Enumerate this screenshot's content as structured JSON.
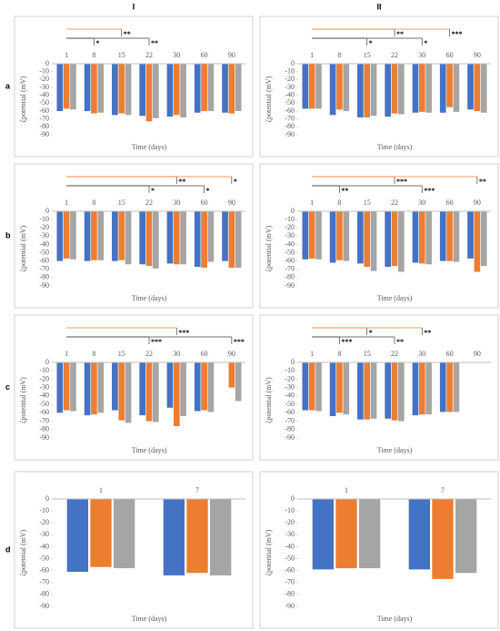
{
  "columns": [
    "I",
    "II"
  ],
  "rows": [
    "a",
    "b",
    "c",
    "d"
  ],
  "chart_data": [
    {
      "type": "bar",
      "categories": [
        "1",
        "8",
        "15",
        "22",
        "30",
        "60",
        "90"
      ],
      "ylim": [
        -90,
        0
      ],
      "yticks": [
        0,
        -10,
        -20,
        -30,
        -40,
        -50,
        -60,
        -70,
        -80,
        -90
      ],
      "y_label": "ζpotential (mV)",
      "x_label": "Time (days)",
      "series": [
        {
          "color": "#4472c4",
          "values": [
            -60,
            -60,
            -65,
            -66,
            -67,
            -62,
            -62
          ]
        },
        {
          "color": "#ed7d31",
          "values": [
            -57,
            -63,
            -63,
            -73,
            -65,
            -60,
            -63
          ]
        },
        {
          "color": "#a5a5a5",
          "values": [
            -58,
            -62,
            -65,
            -69,
            -68,
            -60,
            -60
          ]
        }
      ],
      "annotations": [
        {
          "text": "*",
          "category": "8"
        },
        {
          "text": "**",
          "category": "15"
        },
        {
          "text": "**",
          "category": "22"
        }
      ]
    },
    {
      "type": "bar",
      "categories": [
        "1",
        "8",
        "15",
        "22",
        "30",
        "60",
        "90"
      ],
      "ylim": [
        -90,
        0
      ],
      "yticks": [
        0,
        -10,
        -20,
        -30,
        -40,
        -50,
        -60,
        -70,
        -80,
        -90
      ],
      "y_label": "ζpotential (mV)",
      "x_label": "Time (days)",
      "series": [
        {
          "color": "#4472c4",
          "values": [
            -57,
            -65,
            -68,
            -67,
            -62,
            -62,
            -58
          ]
        },
        {
          "color": "#ed7d31",
          "values": [
            -57,
            -58,
            -68,
            -63,
            -61,
            -55,
            -60
          ]
        },
        {
          "color": "#a5a5a5",
          "values": [
            -57,
            -60,
            -66,
            -64,
            -62,
            -61,
            -62
          ]
        }
      ],
      "annotations": [
        {
          "text": "*",
          "category": "15"
        },
        {
          "text": "**",
          "category": "22"
        },
        {
          "text": "*",
          "category": "30"
        },
        {
          "text": "***",
          "category": "60"
        }
      ]
    },
    {
      "type": "bar",
      "categories": [
        "1",
        "8",
        "15",
        "22",
        "30",
        "60",
        "90"
      ],
      "ylim": [
        -90,
        0
      ],
      "yticks": [
        0,
        -10,
        -20,
        -30,
        -40,
        -50,
        -60,
        -70,
        -80,
        -90
      ],
      "y_label": "ζpotential (mV)",
      "x_label": "Time (days)",
      "series": [
        {
          "color": "#4472c4",
          "values": [
            -60,
            -60,
            -60,
            -64,
            -63,
            -67,
            -60
          ]
        },
        {
          "color": "#ed7d31",
          "values": [
            -57,
            -59,
            -59,
            -66,
            -64,
            -68,
            -68
          ]
        },
        {
          "color": "#a5a5a5",
          "values": [
            -58,
            -59,
            -64,
            -69,
            -64,
            -61,
            -68
          ]
        }
      ],
      "annotations": [
        {
          "text": "*",
          "category": "22"
        },
        {
          "text": "**",
          "category": "30"
        },
        {
          "text": "*",
          "category": "60"
        },
        {
          "text": "*",
          "category": "90"
        }
      ]
    },
    {
      "type": "bar",
      "categories": [
        "1",
        "8",
        "15",
        "22",
        "30",
        "60",
        "90"
      ],
      "ylim": [
        -90,
        0
      ],
      "yticks": [
        0,
        -10,
        -20,
        -30,
        -40,
        -50,
        -60,
        -70,
        -80,
        -90
      ],
      "y_label": "ζpotential (mV)",
      "x_label": "Time (days)",
      "series": [
        {
          "color": "#4472c4",
          "values": [
            -58,
            -62,
            -63,
            -67,
            -62,
            -60,
            -57
          ]
        },
        {
          "color": "#ed7d31",
          "values": [
            -57,
            -59,
            -67,
            -66,
            -63,
            -60,
            -73
          ]
        },
        {
          "color": "#a5a5a5",
          "values": [
            -58,
            -60,
            -72,
            -73,
            -64,
            -61,
            -66
          ]
        }
      ],
      "annotations": [
        {
          "text": "**",
          "category": "8"
        },
        {
          "text": "***",
          "category": "22"
        },
        {
          "text": "***",
          "category": "30"
        },
        {
          "text": "**",
          "category": "90"
        }
      ]
    },
    {
      "type": "bar",
      "categories": [
        "1",
        "8",
        "15",
        "22",
        "30",
        "60",
        "90"
      ],
      "ylim": [
        -90,
        0
      ],
      "yticks": [
        0,
        -10,
        -20,
        -30,
        -40,
        -50,
        -60,
        -70,
        -80,
        -90
      ],
      "y_label": "ζpotential (mV)",
      "x_label": "Time (days)",
      "series": [
        {
          "color": "#4472c4",
          "values": [
            -60,
            -63,
            -57,
            -63,
            -54,
            -58,
            null
          ]
        },
        {
          "color": "#ed7d31",
          "values": [
            -57,
            -62,
            -69,
            -70,
            -76,
            -57,
            -30
          ]
        },
        {
          "color": "#a5a5a5",
          "values": [
            -58,
            -60,
            -72,
            -71,
            -64,
            -59,
            -46
          ]
        }
      ],
      "annotations": [
        {
          "text": "***",
          "category": "22"
        },
        {
          "text": "***",
          "category": "30"
        },
        {
          "text": "***",
          "category": "90"
        }
      ]
    },
    {
      "type": "bar",
      "categories": [
        "1",
        "8",
        "15",
        "22",
        "30",
        "60",
        "90"
      ],
      "ylim": [
        -90,
        0
      ],
      "yticks": [
        0,
        -10,
        -20,
        -30,
        -40,
        -50,
        -60,
        -70,
        -80,
        -90
      ],
      "y_label": "ζpotential (mV)",
      "x_label": "Time (days)",
      "series": [
        {
          "color": "#4472c4",
          "values": [
            -57,
            -64,
            -68,
            -67,
            -63,
            -59,
            null
          ]
        },
        {
          "color": "#ed7d31",
          "values": [
            -57,
            -60,
            -68,
            -69,
            -62,
            -59,
            null
          ]
        },
        {
          "color": "#a5a5a5",
          "values": [
            -58,
            -62,
            -67,
            -70,
            -62,
            -59,
            null
          ]
        }
      ],
      "annotations": [
        {
          "text": "***",
          "category": "8"
        },
        {
          "text": "*",
          "category": "15"
        },
        {
          "text": "**",
          "category": "22"
        },
        {
          "text": "**",
          "category": "30"
        }
      ]
    },
    {
      "type": "bar",
      "categories": [
        "1",
        "7"
      ],
      "ylim": [
        -90,
        0
      ],
      "yticks": [
        0,
        -10,
        -20,
        -30,
        -40,
        -50,
        -60,
        -70,
        -80,
        -90
      ],
      "y_label": "ζpotential (mV)",
      "x_label": "Time (days)",
      "series": [
        {
          "color": "#4472c4",
          "values": [
            -61,
            -64
          ]
        },
        {
          "color": "#ed7d31",
          "values": [
            -57,
            -62
          ]
        },
        {
          "color": "#a5a5a5",
          "values": [
            -58,
            -64
          ]
        }
      ]
    },
    {
      "type": "bar",
      "categories": [
        "1",
        "7"
      ],
      "ylim": [
        -90,
        0
      ],
      "yticks": [
        0,
        -10,
        -20,
        -30,
        -40,
        -50,
        -60,
        -70,
        -80,
        -90
      ],
      "y_label": "ζpotential (mV)",
      "x_label": "Time (days)",
      "series": [
        {
          "color": "#4472c4",
          "values": [
            -59,
            -59
          ]
        },
        {
          "color": "#ed7d31",
          "values": [
            -58,
            -67
          ]
        },
        {
          "color": "#a5a5a5",
          "values": [
            -58,
            -62
          ]
        }
      ]
    }
  ]
}
